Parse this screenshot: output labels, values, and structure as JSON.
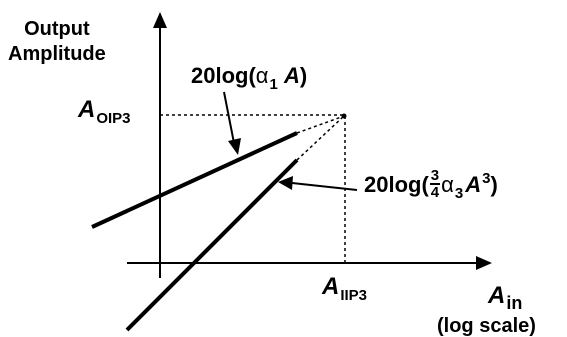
{
  "y_axis": {
    "title_line1": "Output",
    "title_line2": "Amplitude"
  },
  "x_axis": {
    "title_main": "A",
    "title_sub": "in",
    "scale_note": "(log scale)"
  },
  "oip3": {
    "main": "A",
    "sub": "OIP3"
  },
  "iip3": {
    "main": "A",
    "sub": "IIP3"
  },
  "linear_term": {
    "func": "20log(",
    "coef": "α",
    "coef_sub": "1",
    "var": "A",
    "close": ")"
  },
  "cubic_term": {
    "func": "20log(",
    "frac_num": "3",
    "frac_den": "4",
    "coef": "α",
    "coef_sub": "3",
    "var": "A",
    "exp": "3",
    "close": ")"
  }
}
